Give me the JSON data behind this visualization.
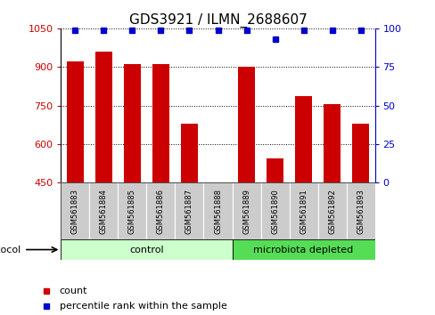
{
  "title": "GDS3921 / ILMN_2688607",
  "samples": [
    "GSM561883",
    "GSM561884",
    "GSM561885",
    "GSM561886",
    "GSM561887",
    "GSM561888",
    "GSM561889",
    "GSM561890",
    "GSM561891",
    "GSM561892",
    "GSM561893"
  ],
  "counts": [
    920,
    960,
    910,
    910,
    680,
    450,
    900,
    545,
    785,
    755,
    680
  ],
  "percentile_ranks": [
    99,
    99,
    99,
    99,
    99,
    99,
    99,
    93,
    99,
    99,
    99
  ],
  "ylim_left": [
    450,
    1050
  ],
  "ylim_right": [
    0,
    100
  ],
  "y_ticks_left": [
    450,
    600,
    750,
    900,
    1050
  ],
  "y_ticks_right": [
    0,
    25,
    50,
    75,
    100
  ],
  "bar_color": "#cc0000",
  "dot_color": "#0000cc",
  "control_color": "#ccffcc",
  "microbiota_color": "#55dd55",
  "sample_bg_color": "#cccccc",
  "control_n": 6,
  "title_fontsize": 11,
  "tick_fontsize": 8,
  "legend_fontsize": 8,
  "sample_fontsize": 6
}
